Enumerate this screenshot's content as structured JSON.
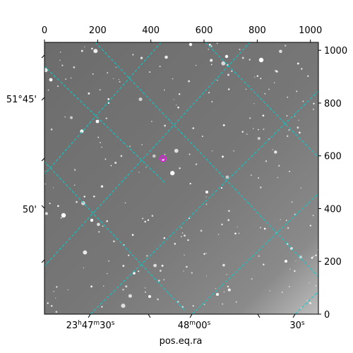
{
  "chart_data": {
    "type": "scatter",
    "title": "",
    "xlabel": "pos.eq.ra",
    "ylabel": "",
    "pixel_axes": {
      "x_range": [
        0,
        1030
      ],
      "y_range": [
        0,
        1030
      ],
      "x_ticks": [
        0,
        200,
        400,
        600,
        800,
        1000
      ],
      "y_ticks": [
        0,
        200,
        400,
        600,
        800,
        1000
      ],
      "x_tick_labels": [
        "0",
        "200",
        "400",
        "600",
        "800",
        "1000"
      ],
      "y_tick_labels": [
        "0",
        "200",
        "400",
        "600",
        "800",
        "1000"
      ]
    },
    "world_axes": {
      "ra_tick_labels": [
        {
          "h": "23",
          "m": "47",
          "s": "30"
        },
        {
          "h": "",
          "m": "48",
          "s": "00"
        },
        {
          "h": "",
          "m": "",
          "s": "30"
        }
      ],
      "dec_tick_labels": [
        "51°45'",
        "50'"
      ]
    },
    "grid": true,
    "grid_color": "#00d0d0",
    "target_marker": {
      "x": 445,
      "y": 590,
      "color": "#ff00ff"
    },
    "background": "grayscale star field"
  }
}
